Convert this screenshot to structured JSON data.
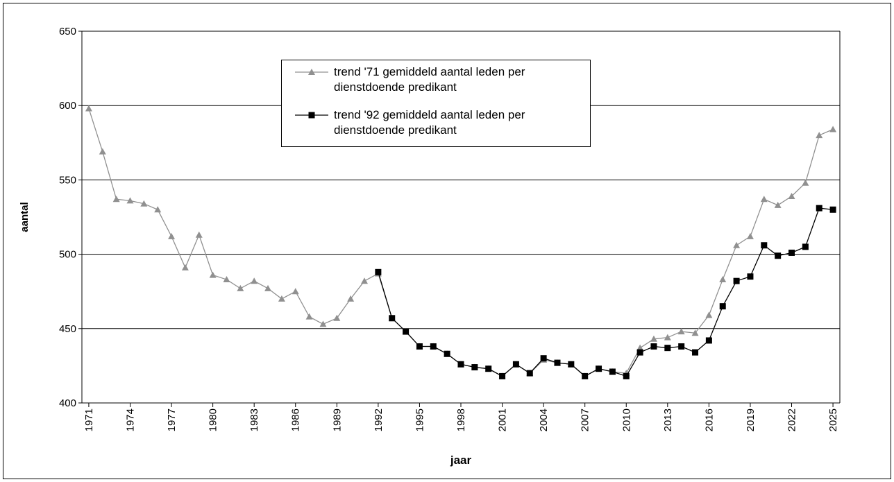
{
  "chart_data": {
    "type": "line",
    "x_label": "jaar",
    "y_label": "aantal",
    "x": [
      1971,
      1972,
      1973,
      1974,
      1975,
      1976,
      1977,
      1978,
      1979,
      1980,
      1981,
      1982,
      1983,
      1984,
      1985,
      1986,
      1987,
      1988,
      1989,
      1990,
      1991,
      1992,
      1993,
      1994,
      1995,
      1996,
      1997,
      1998,
      1999,
      2000,
      2001,
      2002,
      2003,
      2004,
      2005,
      2006,
      2007,
      2008,
      2009,
      2010,
      2011,
      2012,
      2013,
      2014,
      2015,
      2016,
      2017,
      2018,
      2019,
      2020,
      2021,
      2022,
      2023,
      2024,
      2025
    ],
    "series": [
      {
        "name": "trend '71 gemiddeld aantal leden per dienstdoende predikant",
        "color": "#909090",
        "marker": "triangle",
        "values": [
          598,
          569,
          537,
          536,
          534,
          530,
          512,
          491,
          513,
          486,
          483,
          477,
          482,
          477,
          470,
          475,
          458,
          453,
          457,
          470,
          482,
          487,
          457,
          448,
          438,
          438,
          433,
          426,
          424,
          423,
          418,
          426,
          420,
          429,
          427,
          426,
          418,
          423,
          421,
          420,
          437,
          443,
          444,
          448,
          447,
          459,
          483,
          506,
          512,
          537,
          533,
          539,
          548,
          580,
          584
        ]
      },
      {
        "name": "trend '92 gemiddeld aantal leden per dienstdoende predikant",
        "color": "#000000",
        "marker": "square",
        "values": [
          null,
          null,
          null,
          null,
          null,
          null,
          null,
          null,
          null,
          null,
          null,
          null,
          null,
          null,
          null,
          null,
          null,
          null,
          null,
          null,
          null,
          488,
          457,
          448,
          438,
          438,
          433,
          426,
          424,
          423,
          418,
          426,
          420,
          430,
          427,
          426,
          418,
          423,
          421,
          418,
          434,
          438,
          437,
          438,
          434,
          442,
          465,
          482,
          485,
          506,
          499,
          501,
          505,
          531,
          530
        ]
      }
    ],
    "xlim": [
      1970.5,
      2025.5
    ],
    "xticks": [
      1971,
      1974,
      1977,
      1980,
      1983,
      1986,
      1989,
      1992,
      1995,
      1998,
      2001,
      2004,
      2007,
      2010,
      2013,
      2016,
      2019,
      2022,
      2025
    ],
    "ylim": [
      400,
      650
    ],
    "yticks": [
      400,
      450,
      500,
      550,
      600,
      650
    ],
    "grid": true,
    "legend": "top"
  }
}
